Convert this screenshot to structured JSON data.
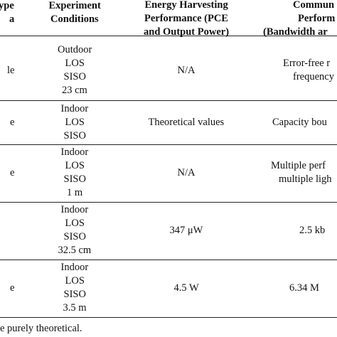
{
  "header": {
    "cells": [
      [
        "ype",
        "a"
      ],
      [
        "Experiment",
        "Conditions"
      ],
      [
        "Energy Harvesting",
        "Performance (PCE",
        "and Output Power)"
      ],
      [
        "Commun",
        "Perform",
        "(Bandwidth ar"
      ]
    ]
  },
  "table": {
    "rows": [
      [
        [
          "le"
        ],
        [
          "Outdoor",
          "LOS",
          "SISO",
          "23 cm"
        ],
        [
          "N/A"
        ],
        [
          "Error-free r",
          "frequency"
        ]
      ],
      [
        [
          "e"
        ],
        [
          "Indoor",
          "LOS",
          "SISO"
        ],
        [
          "Theoretical values"
        ],
        [
          "Capacity bou"
        ]
      ],
      [
        [
          "e"
        ],
        [
          "Indoor",
          "LOS",
          "SISO",
          "1 m"
        ],
        [
          "N/A"
        ],
        [
          "Multiple perf",
          "multiple ligh"
        ]
      ],
      [
        [],
        [
          "Indoor",
          "LOS",
          "SISO",
          "32.5 cm"
        ],
        [
          "347 μW"
        ],
        [
          "2.5 kb"
        ]
      ],
      [
        [
          "e"
        ],
        [
          "Indoor",
          "LOS",
          "SISO",
          "3.5 m"
        ],
        [
          "4.5 W"
        ],
        [
          "6.34 M"
        ]
      ]
    ]
  },
  "footer": "e purely theoretical."
}
